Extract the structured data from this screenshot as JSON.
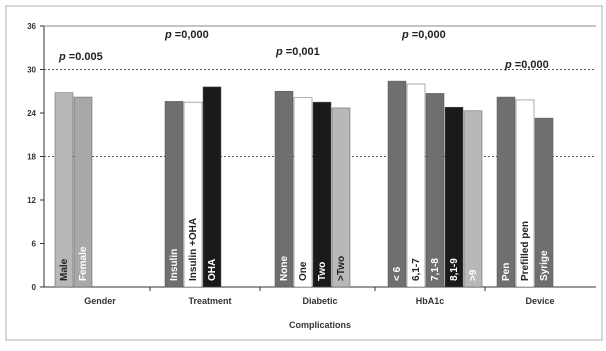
{
  "chart_data": {
    "type": "bar",
    "ylim": [
      0,
      36
    ],
    "yticks": [
      "0",
      "6",
      "12",
      "18",
      "24",
      "30",
      "36"
    ],
    "dashed_gridlines_at": [
      18,
      30
    ],
    "xlabel_lines": [
      "Complications"
    ],
    "groups": [
      {
        "name": "Gender",
        "p_value": "p =0.005",
        "bars": [
          {
            "label": "Male",
            "value": 26.8,
            "color": "#b8b8b8",
            "label_color": "#222222"
          },
          {
            "label": "Female",
            "value": 26.2,
            "color": "#a8a8a8",
            "label_color": "#ffffff"
          }
        ]
      },
      {
        "name": "Treatment",
        "p_value": "p =0,000",
        "bars": [
          {
            "label": "Insulin",
            "value": 25.6,
            "color": "#6f6f6f",
            "label_color": "#ffffff"
          },
          {
            "label": "Insulin +OHA",
            "value": 25.5,
            "color": "#ffffff",
            "label_color": "#222222"
          },
          {
            "label": "OHA",
            "value": 27.6,
            "color": "#1a1a1a",
            "label_color": "#ffffff"
          }
        ]
      },
      {
        "name": "Diabetic",
        "p_value": "p =0,001",
        "bars": [
          {
            "label": "None",
            "value": 27.0,
            "color": "#6f6f6f",
            "label_color": "#ffffff"
          },
          {
            "label": "One",
            "value": 26.1,
            "color": "#ffffff",
            "label_color": "#222222"
          },
          {
            "label": "Two",
            "value": 25.5,
            "color": "#1a1a1a",
            "label_color": "#ffffff"
          },
          {
            "label": ">Two",
            "value": 24.7,
            "color": "#b8b8b8",
            "label_color": "#222222"
          }
        ]
      },
      {
        "name": "HbA1c",
        "p_value": "p =0,000",
        "bars": [
          {
            "label": "< 6",
            "value": 28.4,
            "color": "#6f6f6f",
            "label_color": "#ffffff"
          },
          {
            "label": "6,1-7",
            "value": 28.0,
            "color": "#ffffff",
            "label_color": "#222222"
          },
          {
            "label": "7,1-8",
            "value": 26.7,
            "color": "#6f6f6f",
            "label_color": "#ffffff"
          },
          {
            "label": "8,1-9",
            "value": 24.8,
            "color": "#1a1a1a",
            "label_color": "#ffffff"
          },
          {
            "label": ">9",
            "value": 24.3,
            "color": "#b8b8b8",
            "label_color": "#ffffff"
          }
        ]
      },
      {
        "name": "Device",
        "p_value": "p =0,000",
        "bars": [
          {
            "label": "Pen",
            "value": 26.2,
            "color": "#6f6f6f",
            "label_color": "#ffffff"
          },
          {
            "label": "Prefilled pen",
            "value": 25.8,
            "color": "#ffffff",
            "label_color": "#222222"
          },
          {
            "label": "Syrige",
            "value": 23.3,
            "color": "#6f6f6f",
            "label_color": "#ffffff"
          }
        ]
      }
    ]
  }
}
